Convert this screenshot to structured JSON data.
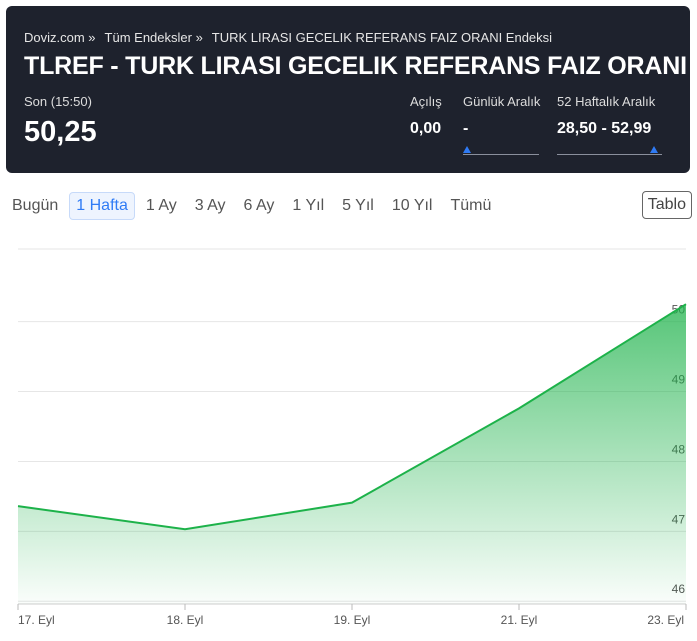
{
  "header": {
    "breadcrumb": [
      "Doviz.com »",
      "Tüm Endeksler »",
      "TURK LIRASI GECELIK REFERANS FAIZ ORANI Endeksi"
    ],
    "title": "TLREF - TURK LIRASI GECELIK REFERANS FAIZ ORANI",
    "last_label": "Son (15:50)",
    "last_value": "50,25",
    "stats": [
      {
        "label": "Açılış",
        "value": "0,00"
      },
      {
        "label": "Günlük Aralık",
        "value": "-"
      },
      {
        "label": "52 Haftalık Aralık",
        "value": "28,50 - 52,99"
      }
    ]
  },
  "tabs": {
    "items": [
      "Bugün",
      "1 Hafta",
      "1 Ay",
      "3 Ay",
      "6 Ay",
      "1 Yıl",
      "5 Yıl",
      "10 Yıl",
      "Tümü"
    ],
    "active": 1,
    "table_button": "Tablo"
  },
  "chart_data": {
    "type": "area",
    "categories": [
      "17. Eyl",
      "18. Eyl",
      "19. Eyl",
      "21. Eyl",
      "23. Eyl"
    ],
    "values": [
      47.36,
      47.03,
      47.41,
      48.76,
      50.25
    ],
    "color": "#1db24a",
    "ylim": [
      45.96,
      51.04
    ],
    "yticks": [
      46,
      47,
      48,
      49,
      50
    ],
    "grid": true
  }
}
